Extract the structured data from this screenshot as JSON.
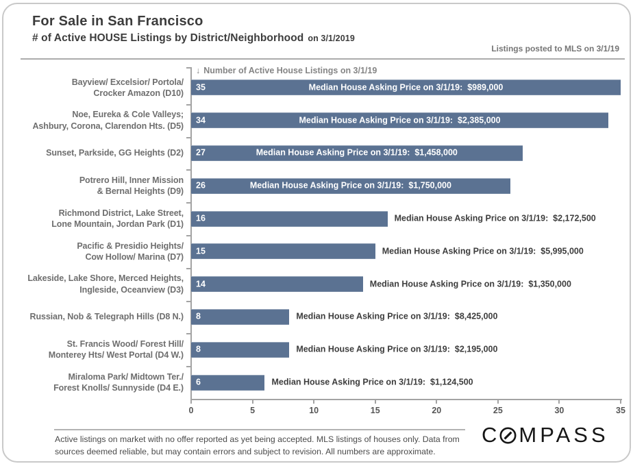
{
  "header": {
    "title": "For Sale in San Francisco",
    "subtitle": "# of Active HOUSE Listings by District/Neighborhood",
    "subtitle_date": "on 3/1/2019",
    "mls_note": "Listings posted to MLS on 3/1/19"
  },
  "chart_data": {
    "type": "bar",
    "orientation": "horizontal",
    "axis_header": "Number of Active House Listings on 3/1/19",
    "axis_header_arrow": "↓",
    "xlim": [
      0,
      35
    ],
    "x_ticks": [
      0,
      5,
      10,
      15,
      20,
      25,
      30,
      35
    ],
    "bar_color": "#5b7292",
    "grid": false,
    "bars": [
      {
        "category_lines": [
          "Bayview/ Excelsior/ Portola/",
          "Crocker Amazon (D10)"
        ],
        "value": 35,
        "median_price": "$989,000",
        "price_label": "Median House Asking Price on 3/1/19:  $989,000",
        "label_position": "inside"
      },
      {
        "category_lines": [
          "Noe, Eureka & Cole Valleys;",
          "Ashbury, Corona, Clarendon Hts. (D5)"
        ],
        "value": 34,
        "median_price": "$2,385,000",
        "price_label": "Median House Asking Price on 3/1/19:  $2,385,000",
        "label_position": "inside"
      },
      {
        "category_lines": [
          "Sunset, Parkside, GG Heights (D2)"
        ],
        "value": 27,
        "median_price": "$1,458,000",
        "price_label": "Median House Asking Price on 3/1/19:  $1,458,000",
        "label_position": "inside"
      },
      {
        "category_lines": [
          "Potrero Hill, Inner Mission",
          "& Bernal Heights (D9)"
        ],
        "value": 26,
        "median_price": "$1,750,000",
        "price_label": "Median House Asking Price on 3/1/19:  $1,750,000",
        "label_position": "inside"
      },
      {
        "category_lines": [
          "Richmond District, Lake Street,",
          "Lone Mountain, Jordan Park (D1)"
        ],
        "value": 16,
        "median_price": "$2,172,500",
        "price_label": "Median House Asking Price on 3/1/19:  $2,172,500",
        "label_position": "outside"
      },
      {
        "category_lines": [
          "Pacific & Presidio Heights/",
          "Cow Hollow/ Marina (D7)"
        ],
        "value": 15,
        "median_price": "$5,995,000",
        "price_label": "Median House Asking Price on 3/1/19:  $5,995,000",
        "label_position": "outside"
      },
      {
        "category_lines": [
          "Lakeside, Lake Shore, Merced Heights,",
          "Ingleside, Oceanview (D3)"
        ],
        "value": 14,
        "median_price": "$1,350,000",
        "price_label": "Median House Asking Price on 3/1/19:  $1,350,000",
        "label_position": "outside"
      },
      {
        "category_lines": [
          "Russian, Nob & Telegraph Hills (D8 N.)"
        ],
        "value": 8,
        "median_price": "$8,425,000",
        "price_label": "Median House Asking Price on 3/1/19:  $8,425,000",
        "label_position": "outside"
      },
      {
        "category_lines": [
          "St. Francis Wood/ Forest Hill/",
          "Monterey Hts/ West Portal (D4 W.)"
        ],
        "value": 8,
        "median_price": "$2,195,000",
        "price_label": "Median House Asking Price on 3/1/19:  $2,195,000",
        "label_position": "outside"
      },
      {
        "category_lines": [
          "Miraloma Park/ Midtown Ter./",
          "Forest Knolls/ Sunnyside (D4 E.)"
        ],
        "value": 6,
        "median_price": "$1,124,500",
        "price_label": "Median House Asking Price on 3/1/19:  $1,124,500",
        "label_position": "outside"
      }
    ]
  },
  "footer": {
    "disclaimer_lines": [
      "Active listings on market with no offer reported as yet being accepted. MLS listings of houses only. Data from",
      "sources deemed reliable, but may contain errors and subject to revision. All numbers are approximate."
    ],
    "logo": {
      "name": "COMPASS",
      "prefix": "C",
      "suffix": "MPASS"
    }
  }
}
